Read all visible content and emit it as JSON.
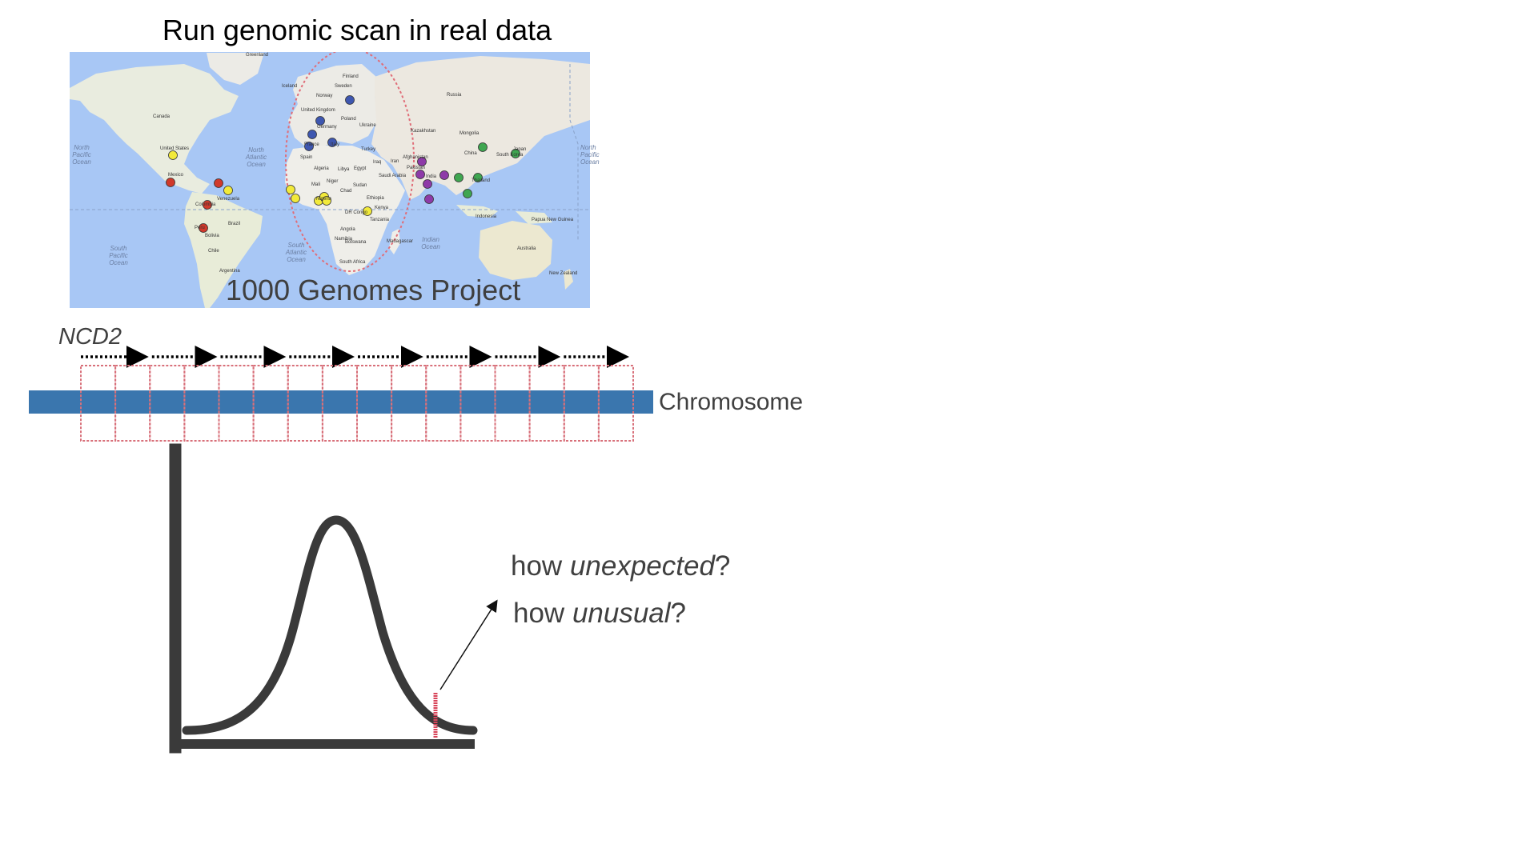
{
  "title": "Run genomic scan in real data",
  "map": {
    "caption": "1000 Genomes Project",
    "colors": {
      "ocean": "#a8c7f5",
      "land": "#eceae4",
      "ellipse": "#e06d78",
      "EUR": "#3e57b0",
      "AFR": "#f2ea3a",
      "AMR": "#d0392b",
      "SAS": "#8e3aa8",
      "EAS": "#3fa650"
    },
    "country_labels": [
      "Greenland",
      "Iceland",
      "Finland",
      "Sweden",
      "Norway",
      "United Kingdom",
      "Poland",
      "Germany",
      "Ukraine",
      "France",
      "Italy",
      "Spain",
      "Turkey",
      "Kazakhstan",
      "Mongolia",
      "Russia",
      "China",
      "Japan",
      "South Korea",
      "Afghanistan",
      "Pakistan",
      "India",
      "Iran",
      "Iraq",
      "Saudi Arabia",
      "Egypt",
      "Libya",
      "Algeria",
      "Mali",
      "Niger",
      "Nigeria",
      "Sudan",
      "Ethiopia",
      "Chad",
      "DR Congo",
      "Kenya",
      "Tanzania",
      "Angola",
      "Namibia",
      "Botswana",
      "South Africa",
      "Madagascar",
      "Canada",
      "United States",
      "Mexico",
      "Venezuela",
      "Colombia",
      "Brazil",
      "Peru",
      "Bolivia",
      "Chile",
      "Argentina",
      "Thailand",
      "Indonesia",
      "Australia",
      "Papua New Guinea",
      "New Zealand"
    ],
    "ocean_labels": [
      "North Pacific Ocean",
      "North Atlantic Ocean",
      "South Atlantic Ocean",
      "South Pacific Ocean",
      "Indian Ocean",
      "North Pacific Ocean"
    ]
  },
  "scan": {
    "statistic_label": "NCD2",
    "chromosome_label": "Chromosome",
    "window_count": 16,
    "colors": {
      "chromosome": "#3a76ae",
      "windows": "#d8707a",
      "arrows": "#000000"
    }
  },
  "distribution": {
    "question_1": {
      "prefix": "how ",
      "emphasis": "unexpected",
      "suffix": "?"
    },
    "question_2": {
      "prefix": "how ",
      "emphasis": "unusual",
      "suffix": "?"
    },
    "colors": {
      "curve": "#3a3a3a",
      "marker": "#d8455a"
    }
  }
}
